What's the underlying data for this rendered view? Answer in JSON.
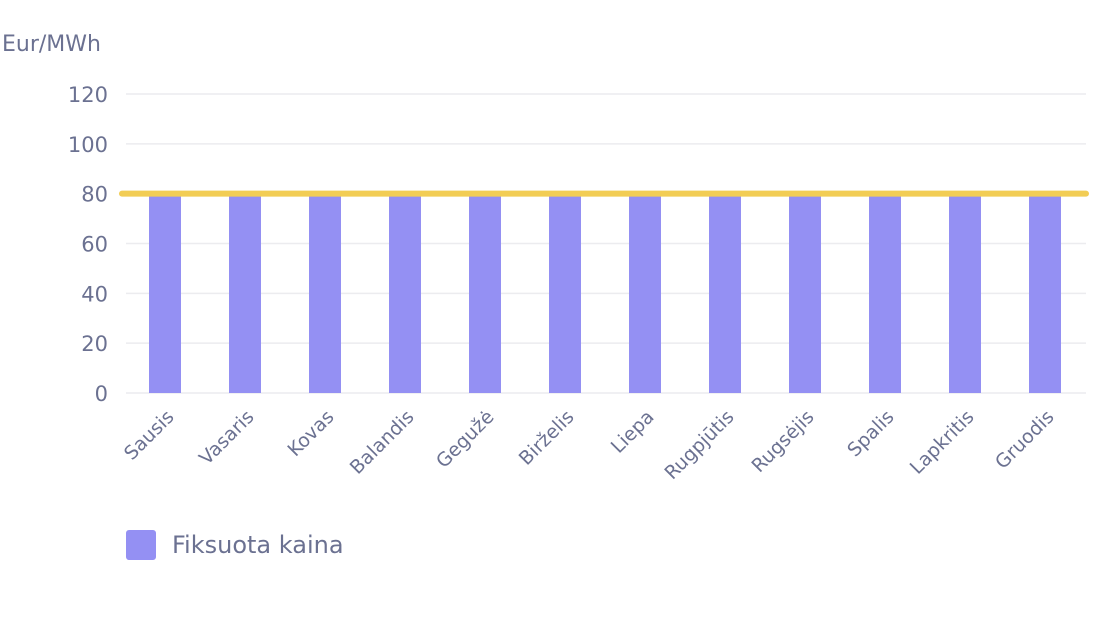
{
  "chart_data": {
    "type": "bar",
    "unit_label": "Eur/MWh",
    "categories": [
      "Sausis",
      "Vasaris",
      "Kovas",
      "Balandis",
      "Gegužė",
      "Birželis",
      "Liepa",
      "Rugpjūtis",
      "Rugsėjis",
      "Spalis",
      "Lapkritis",
      "Gruodis"
    ],
    "series": [
      {
        "name": "Fiksuota kaina",
        "values": [
          80,
          80,
          80,
          80,
          80,
          80,
          80,
          80,
          80,
          80,
          80,
          80
        ],
        "color": "#9490f3"
      }
    ],
    "reference_line": {
      "value": 80,
      "color": "#f2cd55"
    },
    "ylim": [
      0,
      120
    ],
    "yticks": [
      "0",
      "20",
      "40",
      "60",
      "80",
      "100",
      "120"
    ],
    "grid": true,
    "legend_position": "bottom-left"
  }
}
